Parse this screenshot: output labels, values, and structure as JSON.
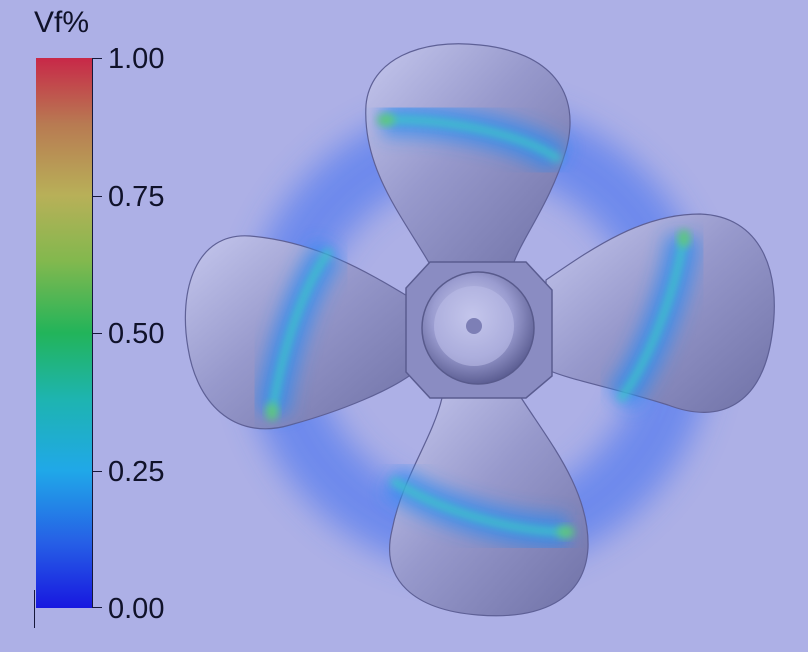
{
  "colorbar": {
    "title": "Vf%",
    "ticks": [
      "1.00",
      "0.75",
      "0.50",
      "0.25",
      "0.00"
    ],
    "gradient_colors": [
      "#c82848",
      "#b87a52",
      "#b8b058",
      "#82b84e",
      "#22b45a",
      "#1eb4b0",
      "#20a8e8",
      "#2660e6",
      "#1818e0"
    ]
  },
  "scene": {
    "background_color": "#adb0e6",
    "subject": "four-blade-propeller-with-cavitation-vapor-fraction",
    "blade_count": 4,
    "blade_color": "#9294c8",
    "vapor_color": "#2a6cf0"
  }
}
